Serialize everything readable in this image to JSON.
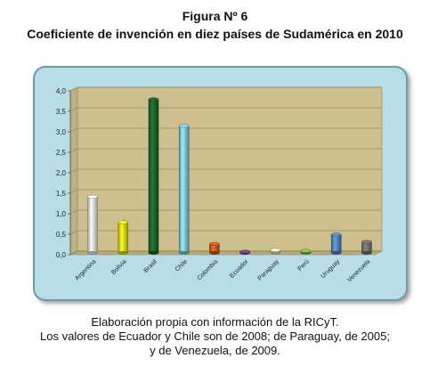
{
  "figure_number": "Figura Nº 6",
  "title": "Coeficiente de invención en diez países de Sudamérica en 2010",
  "caption": {
    "line1": "Elaboración propia con información de la RICyT.",
    "line2": "Los valores de Ecuador y Chile son de 2008; de Paraguay, de 2005;",
    "line3": "y de Venezuela, de 2009."
  },
  "colors": {
    "plot_wall": "#cdbf8e",
    "plot_floor": "#b9ab78",
    "frame_bg": "#b7dde6"
  },
  "chart_data": {
    "type": "bar",
    "title": "",
    "xlabel": "",
    "ylabel": "",
    "ylim": [
      0,
      4
    ],
    "yticks": [
      "0,0",
      "0,5",
      "1,0",
      "1,5",
      "2,0",
      "2,5",
      "3,0",
      "3,5",
      "4,0"
    ],
    "grid": true,
    "legend": "none",
    "categories": [
      "Argentina",
      "Bolivia",
      "Brasil",
      "Chile",
      "Colombia",
      "Ecuador",
      "Paraguay",
      "Perú",
      "Uruguay",
      "Venezuela"
    ],
    "values": [
      1.37,
      0.75,
      3.75,
      3.1,
      0.22,
      0.03,
      0.07,
      0.05,
      0.45,
      0.27
    ],
    "bar_colors": [
      "#f8f8f8",
      "#f2ec1c",
      "#1f6b30",
      "#86d6e6",
      "#d9631e",
      "#6a4a9a",
      "#f7f1cc",
      "#8cc84a",
      "#5b8ec9",
      "#7a7a7a"
    ]
  }
}
